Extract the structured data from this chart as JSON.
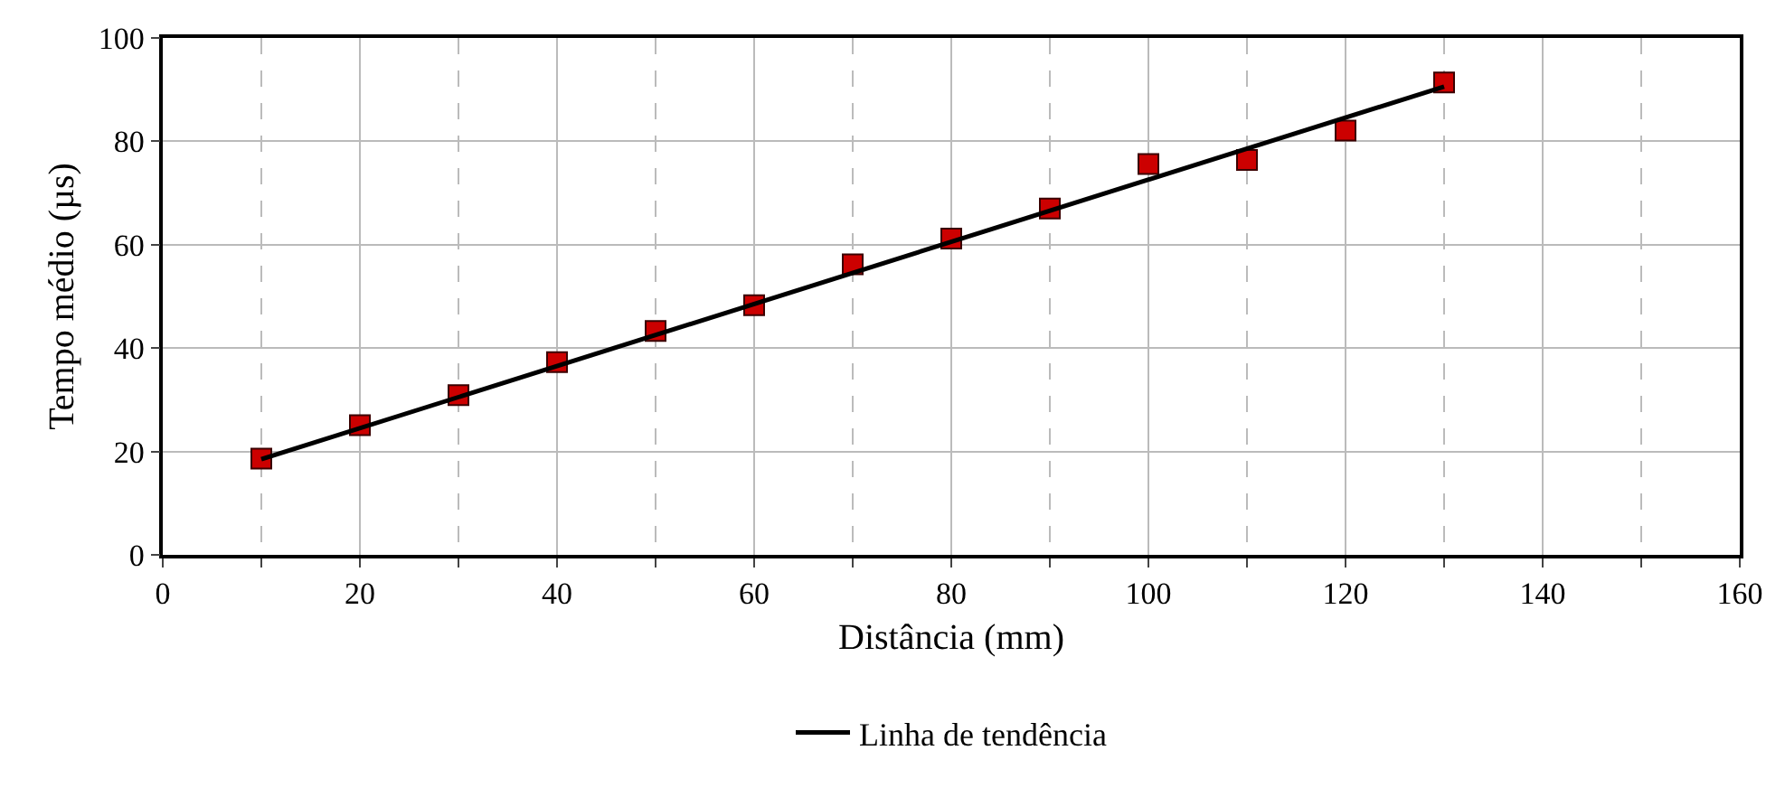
{
  "chart_data": {
    "type": "scatter",
    "xlabel": "Distância (mm)",
    "ylabel": "Tempo médio (µs)",
    "x": [
      10,
      20,
      30,
      40,
      50,
      60,
      70,
      80,
      90,
      100,
      110,
      120,
      130
    ],
    "series": [
      {
        "color": "#cc0000",
        "marker": "square",
        "values": [
          18.6,
          25.1,
          30.9,
          37.3,
          43.3,
          48.3,
          56.2,
          61.2,
          67.0,
          75.6,
          76.4,
          82.1,
          91.4
        ]
      },
      {
        "type": "line",
        "name": "Linha de tendência",
        "color": "#000000",
        "x": [
          10,
          130
        ],
        "values": [
          18.5,
          90.6
        ],
        "marker": "none",
        "line_style": "solid"
      }
    ],
    "xlim": [
      0,
      160
    ],
    "xticks": [
      0,
      {
        "value": 10,
        "label": null
      },
      20,
      {
        "value": 30,
        "label": null
      },
      40,
      {
        "value": 50,
        "label": null
      },
      60,
      {
        "value": 70,
        "label": null
      },
      80,
      {
        "value": 90,
        "label": null
      },
      100,
      {
        "value": 110,
        "label": null
      },
      120,
      {
        "value": 130,
        "label": null
      },
      140,
      {
        "value": 150,
        "label": null
      },
      160
    ],
    "ylim": [
      0,
      100
    ],
    "yticks": [
      0,
      20,
      40,
      60,
      80,
      100
    ],
    "grid": true,
    "legend": "bottom"
  }
}
